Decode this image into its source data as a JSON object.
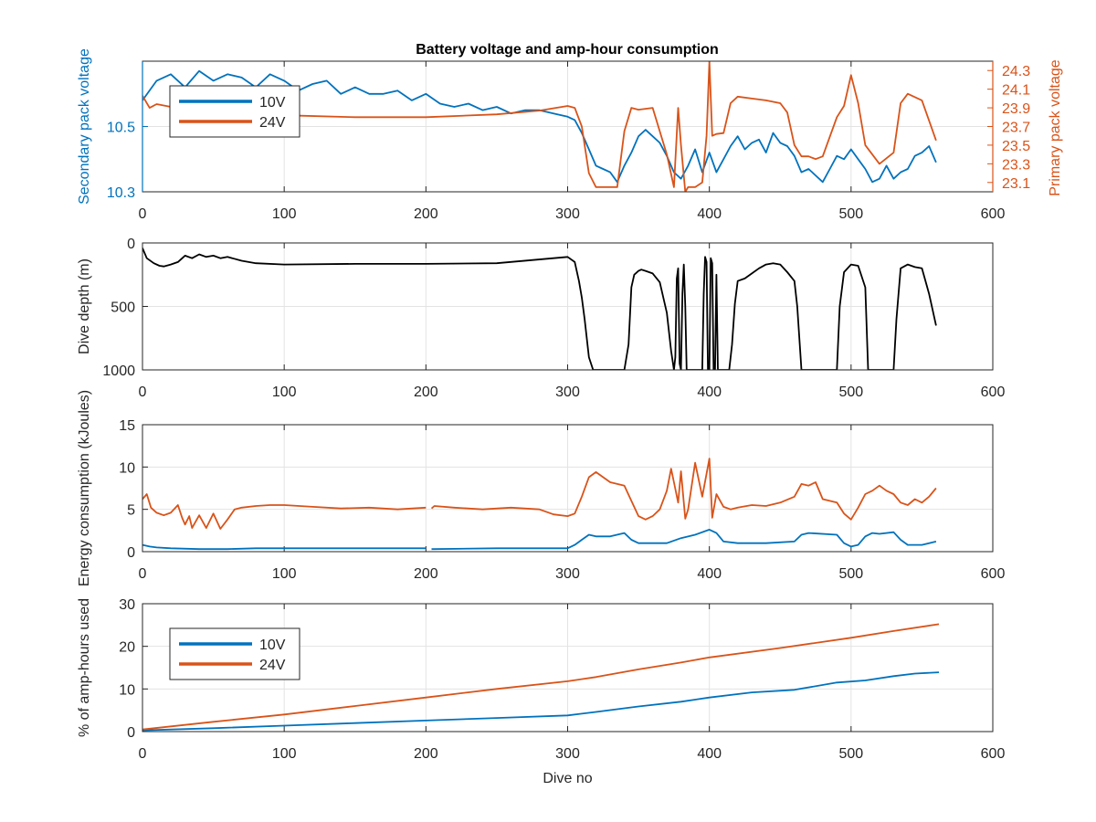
{
  "figure_title": "Battery voltage and amp-hour consumption",
  "colors": {
    "blue": "#0072BD",
    "orange": "#D95319",
    "black": "#000000",
    "grid": "#e3e3e3"
  },
  "chart_data": [
    {
      "type": "line",
      "id": "voltage",
      "title": "Battery voltage and amp-hour consumption",
      "xlabel": "",
      "ylabel_left": "Secondary pack voltage",
      "ylabel_right": "Primary pack voltage",
      "xlim": [
        0,
        600
      ],
      "ylim_left": [
        10.3,
        10.7
      ],
      "ylim_right": [
        23.0,
        24.4
      ],
      "x_ticks": [
        "0",
        "100",
        "200",
        "300",
        "400",
        "500",
        "600"
      ],
      "y_ticks_left": [
        "10.3",
        "10.5"
      ],
      "y_ticks_right": [
        "23.1",
        "23.3",
        "23.5",
        "23.7",
        "23.9",
        "24.1",
        "24.3"
      ],
      "legend": {
        "position": "top-left",
        "entries": [
          "10V",
          "24V"
        ]
      },
      "series": [
        {
          "name": "10V",
          "axis": "left",
          "color": "#0072BD",
          "x": [
            0,
            10,
            20,
            30,
            40,
            50,
            60,
            70,
            80,
            90,
            100,
            110,
            120,
            130,
            140,
            150,
            160,
            170,
            180,
            190,
            200,
            210,
            220,
            230,
            240,
            250,
            260,
            270,
            280,
            290,
            300,
            305,
            310,
            315,
            320,
            325,
            330,
            335,
            340,
            345,
            350,
            355,
            360,
            365,
            370,
            375,
            380,
            385,
            390,
            395,
            400,
            405,
            410,
            415,
            420,
            425,
            430,
            435,
            440,
            445,
            450,
            455,
            460,
            465,
            470,
            475,
            480,
            485,
            490,
            495,
            500,
            505,
            510,
            515,
            520,
            525,
            530,
            535,
            540,
            545,
            550,
            555,
            560
          ],
          "values": [
            10.58,
            10.64,
            10.66,
            10.62,
            10.67,
            10.64,
            10.66,
            10.65,
            10.62,
            10.66,
            10.64,
            10.61,
            10.63,
            10.64,
            10.6,
            10.62,
            10.6,
            10.6,
            10.61,
            10.58,
            10.6,
            10.57,
            10.56,
            10.57,
            10.55,
            10.56,
            10.54,
            10.55,
            10.55,
            10.54,
            10.53,
            10.52,
            10.48,
            10.43,
            10.38,
            10.37,
            10.36,
            10.33,
            10.38,
            10.42,
            10.47,
            10.49,
            10.47,
            10.45,
            10.41,
            10.36,
            10.34,
            10.38,
            10.43,
            10.36,
            10.42,
            10.36,
            10.4,
            10.44,
            10.47,
            10.43,
            10.45,
            10.46,
            10.42,
            10.48,
            10.45,
            10.44,
            10.41,
            10.36,
            10.37,
            10.35,
            10.33,
            10.37,
            10.41,
            10.4,
            10.43,
            10.4,
            10.37,
            10.33,
            10.34,
            10.38,
            10.34,
            10.36,
            10.37,
            10.41,
            10.42,
            10.44,
            10.39
          ]
        },
        {
          "name": "24V",
          "axis": "right",
          "color": "#D95319",
          "x": [
            0,
            5,
            10,
            20,
            40,
            60,
            80,
            100,
            150,
            200,
            250,
            280,
            300,
            305,
            310,
            315,
            320,
            330,
            335,
            340,
            345,
            350,
            360,
            370,
            375,
            378,
            380,
            383,
            385,
            390,
            395,
            398,
            400,
            402,
            405,
            410,
            415,
            420,
            430,
            440,
            450,
            455,
            460,
            465,
            470,
            475,
            480,
            490,
            495,
            500,
            505,
            510,
            520,
            530,
            535,
            540,
            550,
            560
          ],
          "values": [
            24.03,
            23.9,
            23.94,
            23.91,
            23.88,
            23.85,
            23.83,
            23.82,
            23.8,
            23.8,
            23.83,
            23.87,
            23.92,
            23.9,
            23.7,
            23.2,
            23.05,
            23.05,
            23.05,
            23.65,
            23.9,
            23.88,
            23.9,
            23.4,
            23.05,
            23.9,
            23.5,
            23.0,
            23.05,
            23.05,
            23.1,
            23.6,
            24.4,
            23.6,
            23.62,
            23.63,
            23.95,
            24.02,
            24.0,
            23.98,
            23.95,
            23.85,
            23.5,
            23.38,
            23.38,
            23.35,
            23.38,
            23.8,
            23.92,
            24.25,
            23.95,
            23.5,
            23.3,
            23.42,
            23.95,
            24.05,
            23.98,
            23.55
          ]
        }
      ]
    },
    {
      "type": "line",
      "id": "depth",
      "title": "",
      "xlabel": "",
      "ylabel": "Dive depth (m)",
      "xlim": [
        0,
        600
      ],
      "ylim": [
        0,
        1000
      ],
      "y_reversed": true,
      "x_ticks": [
        "0",
        "100",
        "200",
        "300",
        "400",
        "500",
        "600"
      ],
      "y_ticks": [
        "0",
        "500",
        "1000"
      ],
      "series": [
        {
          "color": "#000000",
          "x": [
            0,
            3,
            8,
            12,
            15,
            20,
            25,
            30,
            35,
            40,
            45,
            50,
            55,
            60,
            70,
            80,
            100,
            150,
            200,
            250,
            290,
            300,
            305,
            308,
            310,
            312,
            315,
            318,
            320,
            340,
            343,
            345,
            347,
            350,
            352,
            355,
            360,
            365,
            370,
            373,
            375,
            376,
            377,
            378,
            379,
            380,
            381,
            382,
            383,
            384,
            385,
            395,
            396,
            397,
            398,
            399,
            400,
            401,
            402,
            403,
            404,
            405,
            406,
            407,
            410,
            414,
            416,
            418,
            420,
            425,
            430,
            435,
            440,
            445,
            450,
            455,
            460,
            462,
            465,
            490,
            492,
            495,
            500,
            505,
            510,
            512,
            515,
            530,
            532,
            535,
            540,
            545,
            550,
            555,
            560
          ],
          "values": [
            40,
            120,
            160,
            180,
            185,
            170,
            150,
            100,
            120,
            90,
            110,
            100,
            120,
            110,
            140,
            160,
            170,
            165,
            165,
            160,
            120,
            110,
            150,
            300,
            430,
            600,
            900,
            1000,
            1000,
            1000,
            800,
            350,
            250,
            220,
            210,
            220,
            240,
            310,
            550,
            850,
            1000,
            900,
            280,
            200,
            950,
            1000,
            400,
            170,
            500,
            1000,
            1000,
            1000,
            400,
            110,
            150,
            1000,
            1000,
            120,
            160,
            1000,
            1000,
            250,
            1000,
            1000,
            1000,
            1000,
            800,
            480,
            300,
            280,
            240,
            200,
            170,
            160,
            170,
            230,
            300,
            500,
            1000,
            1000,
            500,
            230,
            170,
            180,
            350,
            1000,
            1000,
            1000,
            600,
            200,
            170,
            190,
            200,
            400,
            650
          ]
        }
      ]
    },
    {
      "type": "line",
      "id": "energy",
      "title": "",
      "xlabel": "",
      "ylabel": "Energy consumption (kJoules)",
      "xlim": [
        0,
        600
      ],
      "ylim": [
        0,
        15
      ],
      "x_ticks": [
        "0",
        "100",
        "200",
        "300",
        "400",
        "500",
        "600"
      ],
      "y_ticks": [
        "0",
        "5",
        "10",
        "15"
      ],
      "series": [
        {
          "name": "24V",
          "color": "#D95319",
          "x": [
            0,
            3,
            6,
            10,
            15,
            20,
            25,
            28,
            30,
            33,
            35,
            40,
            45,
            50,
            55,
            60,
            65,
            70,
            80,
            90,
            100,
            120,
            140,
            160,
            180,
            200,
            202,
            204,
            206,
            220,
            240,
            260,
            280,
            290,
            300,
            305,
            310,
            315,
            320,
            330,
            340,
            345,
            350,
            355,
            360,
            365,
            370,
            373,
            375,
            378,
            380,
            383,
            385,
            390,
            395,
            398,
            400,
            402,
            405,
            410,
            415,
            420,
            430,
            440,
            450,
            460,
            465,
            470,
            475,
            480,
            490,
            495,
            500,
            505,
            510,
            515,
            520,
            525,
            530,
            535,
            540,
            545,
            550,
            555,
            560
          ],
          "values": [
            6.2,
            6.8,
            5.2,
            4.6,
            4.3,
            4.6,
            5.5,
            4.0,
            3.2,
            4.2,
            2.8,
            4.3,
            2.8,
            4.5,
            2.7,
            3.8,
            5.0,
            5.2,
            5.4,
            5.5,
            5.5,
            5.3,
            5.1,
            5.2,
            5.0,
            5.2,
            null,
            5.1,
            5.4,
            5.2,
            5.0,
            5.2,
            5.0,
            4.4,
            4.2,
            4.5,
            6.5,
            8.8,
            9.4,
            8.2,
            7.8,
            6.0,
            4.2,
            3.8,
            4.2,
            5.0,
            7.2,
            9.8,
            8.2,
            5.8,
            9.5,
            3.9,
            5.0,
            10.5,
            6.5,
            9.2,
            11.0,
            4.0,
            6.8,
            5.3,
            5.0,
            5.2,
            5.5,
            5.4,
            5.8,
            6.5,
            8.0,
            7.8,
            8.2,
            6.2,
            5.8,
            4.5,
            3.8,
            5.2,
            6.8,
            7.2,
            7.8,
            7.2,
            6.8,
            5.8,
            5.5,
            6.2,
            5.8,
            6.5,
            7.5
          ]
        },
        {
          "name": "10V",
          "color": "#0072BD",
          "x": [
            0,
            5,
            10,
            20,
            40,
            60,
            80,
            100,
            150,
            200,
            202,
            204,
            206,
            250,
            300,
            305,
            310,
            315,
            320,
            330,
            340,
            345,
            350,
            370,
            380,
            390,
            400,
            405,
            410,
            420,
            440,
            460,
            465,
            470,
            490,
            495,
            500,
            505,
            510,
            515,
            520,
            530,
            535,
            540,
            550,
            560
          ],
          "values": [
            0.8,
            0.6,
            0.5,
            0.4,
            0.3,
            0.3,
            0.4,
            0.4,
            0.4,
            0.4,
            null,
            0.3,
            0.3,
            0.4,
            0.4,
            0.8,
            1.4,
            2.0,
            1.8,
            1.8,
            2.2,
            1.4,
            1.0,
            1.0,
            1.6,
            2.0,
            2.6,
            2.2,
            1.2,
            1.0,
            1.0,
            1.2,
            2.0,
            2.2,
            2.0,
            1.0,
            0.6,
            0.8,
            1.8,
            2.2,
            2.1,
            2.3,
            1.4,
            0.8,
            0.8,
            1.2
          ]
        }
      ]
    },
    {
      "type": "line",
      "id": "amphours",
      "title": "",
      "xlabel": "Dive no",
      "ylabel": "% of amp-hours used",
      "xlim": [
        0,
        600
      ],
      "ylim": [
        0,
        30
      ],
      "x_ticks": [
        "0",
        "100",
        "200",
        "300",
        "400",
        "500",
        "600"
      ],
      "y_ticks": [
        "0",
        "10",
        "20",
        "30"
      ],
      "legend": {
        "position": "top-left",
        "entries": [
          "10V",
          "24V"
        ]
      },
      "series": [
        {
          "name": "10V",
          "color": "#0072BD",
          "x": [
            0,
            50,
            100,
            150,
            200,
            250,
            300,
            320,
            350,
            380,
            400,
            430,
            460,
            490,
            510,
            530,
            545,
            562
          ],
          "values": [
            0.3,
            0.8,
            1.4,
            2.0,
            2.6,
            3.2,
            3.8,
            4.6,
            5.9,
            7.0,
            8.0,
            9.2,
            9.8,
            11.5,
            12.0,
            13.0,
            13.6,
            13.9
          ]
        },
        {
          "name": "24V",
          "color": "#D95319",
          "x": [
            0,
            50,
            100,
            150,
            200,
            250,
            300,
            320,
            350,
            380,
            400,
            450,
            500,
            530,
            562
          ],
          "values": [
            0.5,
            2.3,
            4.0,
            6.0,
            8.0,
            10.0,
            11.8,
            12.8,
            14.6,
            16.2,
            17.4,
            19.6,
            22.0,
            23.6,
            25.2
          ]
        }
      ]
    }
  ]
}
